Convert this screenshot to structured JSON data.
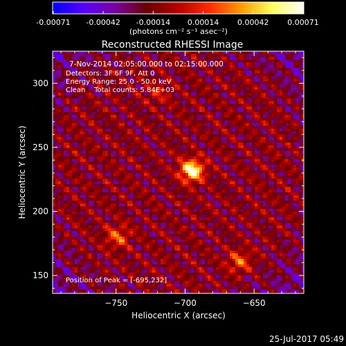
{
  "colorbar": {
    "tick_labels": [
      "-0.00071",
      "-0.00042",
      "-0.00014",
      "0.00014",
      "0.00042",
      "0.00071"
    ],
    "unit_label": "(photons cm⁻² s⁻¹ asec⁻²)",
    "colors": [
      "#0000ff",
      "#5a00ff",
      "#7a00a0",
      "#6a0000",
      "#b80000",
      "#ff2a00",
      "#ff9a00",
      "#ffff60",
      "#ffffff"
    ]
  },
  "chart_data": {
    "type": "heatmap",
    "title": "Reconstructed RHESSI Image",
    "xlabel": "Heliocentric X (arcsec)",
    "ylabel": "Heliocentric Y (arcsec)",
    "xlim": [
      -796,
      -614
    ],
    "ylim": [
      136,
      325
    ],
    "x_ticks": [
      -750,
      -700,
      -650
    ],
    "y_ticks": [
      150,
      200,
      250,
      300
    ],
    "x_tick_labels": [
      "−750",
      "−700",
      "−650"
    ],
    "y_tick_labels": [
      "150",
      "200",
      "250",
      "300"
    ],
    "sources": [
      {
        "x": -695,
        "y": 232,
        "relative_intensity": 1.0
      },
      {
        "x": -749,
        "y": 180,
        "relative_intensity": 0.45
      },
      {
        "x": -661,
        "y": 161,
        "relative_intensity": 0.45
      },
      {
        "x": -720,
        "y": 292,
        "relative_intensity": 0.25
      }
    ],
    "peak": {
      "x": -695,
      "y": 232
    }
  },
  "annotations": {
    "time_range": "7-Nov-2014 02:05:00.000 to 02:15:00.000",
    "detectors": "Detectors: 3F 6F 9F, Att 0",
    "energy": "Energy Range: 25.0 - 50.0 keV",
    "clean": "Clean    Total counts: 5.84E+03",
    "peak_text": "Position of Peak = [-695,232]"
  },
  "footer": {
    "date": "25-Jul-2017 05:49"
  }
}
